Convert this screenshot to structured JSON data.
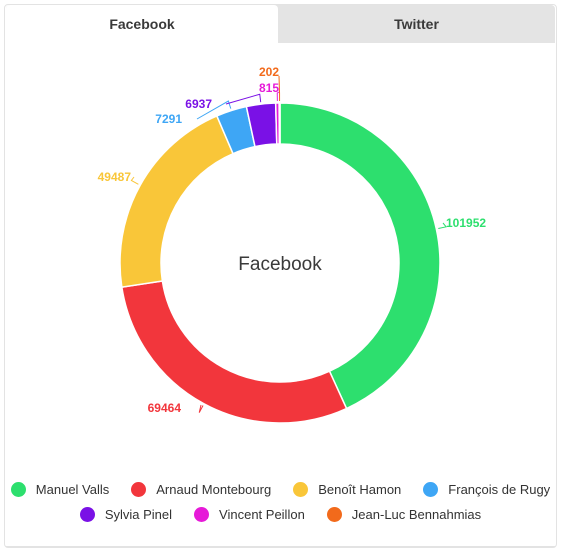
{
  "tabs": [
    {
      "label": "Facebook",
      "active": true
    },
    {
      "label": "Twitter",
      "active": false
    }
  ],
  "chart_data": {
    "type": "pie",
    "variant": "donut",
    "title": "Facebook",
    "series": [
      {
        "name": "Manuel Valls",
        "value": 101952,
        "color": "#2ddf6e"
      },
      {
        "name": "Arnaud Montebourg",
        "value": 69464,
        "color": "#f2363c"
      },
      {
        "name": "Benoît Hamon",
        "value": 49487,
        "color": "#f9c639"
      },
      {
        "name": "François de Rugy",
        "value": 7291,
        "color": "#3ea6f5"
      },
      {
        "name": "Sylvia Pinel",
        "value": 6937,
        "color": "#7a11e6"
      },
      {
        "name": "Vincent Peillon",
        "value": 815,
        "color": "#e61ad8"
      },
      {
        "name": "Jean-Luc Bennahmias",
        "value": 202,
        "color": "#f26a1b"
      }
    ],
    "legend_position": "bottom"
  }
}
